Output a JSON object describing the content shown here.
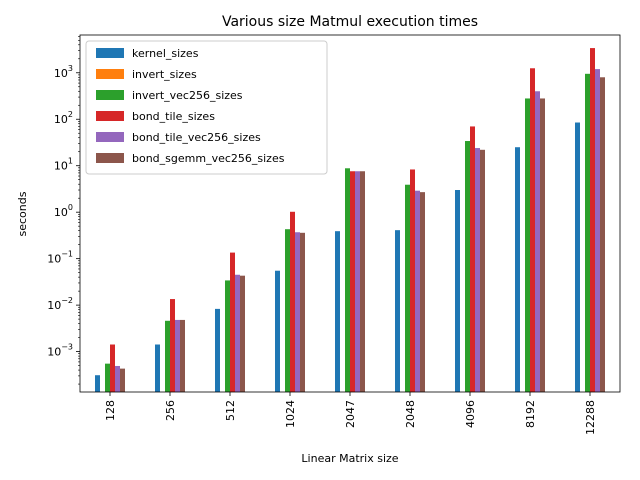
{
  "chart_data": {
    "type": "bar",
    "title": "Various size Matmul execution times",
    "xlabel": "Linear Matrix size",
    "ylabel": "seconds",
    "yscale": "log",
    "ylim": [
      0.000135,
      6500
    ],
    "yticks": [
      0.001,
      0.01,
      0.1,
      1,
      10,
      100,
      1000
    ],
    "ytick_labels": [
      [
        "10",
        "−3"
      ],
      [
        "10",
        "−2"
      ],
      [
        "10",
        "−1"
      ],
      [
        "10",
        "0"
      ],
      [
        "10",
        "1"
      ],
      [
        "10",
        "2"
      ],
      [
        "10",
        "3"
      ]
    ],
    "categories": [
      "128",
      "256",
      "512",
      "1024",
      "2047",
      "2048",
      "4096",
      "8192",
      "12288"
    ],
    "legend_position": "upper left",
    "series": [
      {
        "name": "kernel_sizes",
        "color": "#1f77b4",
        "values": [
          0.00031,
          0.00142,
          0.0083,
          0.055,
          0.39,
          0.41,
          3.0,
          25,
          85
        ]
      },
      {
        "name": "invert_sizes",
        "color": "#ff7f0e",
        "values": [
          null,
          null,
          null,
          null,
          null,
          null,
          null,
          null,
          null
        ]
      },
      {
        "name": "invert_vec256_sizes",
        "color": "#2ca02c",
        "values": [
          0.00055,
          0.0046,
          0.034,
          0.43,
          8.8,
          3.9,
          34,
          280,
          950
        ]
      },
      {
        "name": "bond_tile_sizes",
        "color": "#d62728",
        "values": [
          0.00142,
          0.0135,
          0.135,
          1.02,
          7.6,
          8.3,
          70,
          1250,
          3400
        ]
      },
      {
        "name": "bond_tile_vec256_sizes",
        "color": "#9467bd",
        "values": [
          0.00049,
          0.0048,
          0.045,
          0.37,
          7.6,
          2.9,
          24,
          400,
          1200
        ]
      },
      {
        "name": "bond_sgemm_vec256_sizes",
        "color": "#8c564b",
        "values": [
          0.00043,
          0.0048,
          0.043,
          0.36,
          7.6,
          2.7,
          22,
          280,
          800
        ]
      }
    ]
  }
}
